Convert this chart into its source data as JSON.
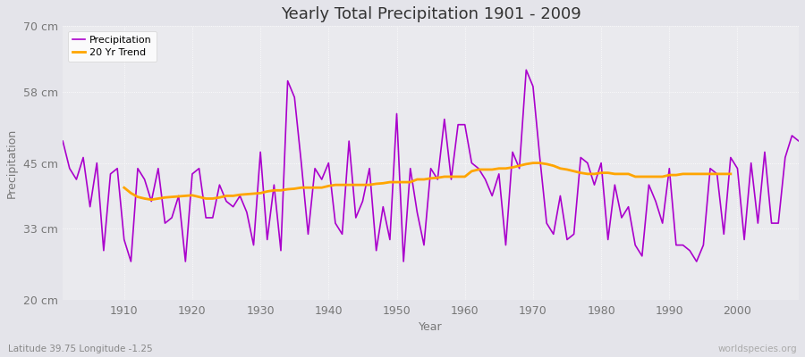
{
  "title": "Yearly Total Precipitation 1901 - 2009",
  "xlabel": "Year",
  "ylabel": "Precipitation",
  "subtitle": "Latitude 39.75 Longitude -1.25",
  "watermark": "worldspecies.org",
  "ylim": [
    20,
    70
  ],
  "yticks": [
    20,
    33,
    45,
    58,
    70
  ],
  "ytick_labels": [
    "20 cm",
    "33 cm",
    "45 cm",
    "58 cm",
    "70 cm"
  ],
  "precip_color": "#AA00CC",
  "trend_color": "#FFA500",
  "bg_color": "#E4E4EA",
  "plot_bg_color": "#EAEAEE",
  "grid_color": "#FFFFFF",
  "subtitle_color": "#888888",
  "watermark_color": "#AAAAAA",
  "title_color": "#333333",
  "years": [
    1901,
    1902,
    1903,
    1904,
    1905,
    1906,
    1907,
    1908,
    1909,
    1910,
    1911,
    1912,
    1913,
    1914,
    1915,
    1916,
    1917,
    1918,
    1919,
    1920,
    1921,
    1922,
    1923,
    1924,
    1925,
    1926,
    1927,
    1928,
    1929,
    1930,
    1931,
    1932,
    1933,
    1934,
    1935,
    1936,
    1937,
    1938,
    1939,
    1940,
    1941,
    1942,
    1943,
    1944,
    1945,
    1946,
    1947,
    1948,
    1949,
    1950,
    1951,
    1952,
    1953,
    1954,
    1955,
    1956,
    1957,
    1958,
    1959,
    1960,
    1961,
    1962,
    1963,
    1964,
    1965,
    1966,
    1967,
    1968,
    1969,
    1970,
    1971,
    1972,
    1973,
    1974,
    1975,
    1976,
    1977,
    1978,
    1979,
    1980,
    1981,
    1982,
    1983,
    1984,
    1985,
    1986,
    1987,
    1988,
    1989,
    1990,
    1991,
    1992,
    1993,
    1994,
    1995,
    1996,
    1997,
    1998,
    1999,
    2000,
    2001,
    2002,
    2003,
    2004,
    2005,
    2006,
    2007,
    2008,
    2009
  ],
  "precipitation": [
    49,
    44,
    42,
    46,
    37,
    45,
    29,
    43,
    44,
    31,
    27,
    44,
    42,
    38,
    44,
    34,
    35,
    39,
    27,
    43,
    44,
    35,
    35,
    41,
    38,
    37,
    39,
    36,
    30,
    47,
    31,
    41,
    29,
    60,
    57,
    45,
    32,
    44,
    42,
    45,
    34,
    32,
    49,
    35,
    38,
    44,
    29,
    37,
    31,
    54,
    27,
    44,
    36,
    30,
    44,
    42,
    53,
    42,
    52,
    52,
    45,
    44,
    42,
    39,
    43,
    30,
    47,
    44,
    62,
    59,
    46,
    34,
    32,
    39,
    31,
    32,
    46,
    45,
    41,
    45,
    31,
    41,
    35,
    37,
    30,
    28,
    41,
    38,
    34,
    44,
    30,
    30,
    29,
    27,
    30,
    44,
    43,
    32,
    46,
    44,
    31,
    45,
    34,
    47,
    34,
    34,
    46,
    50,
    49
  ],
  "trend_years": [
    1910,
    1911,
    1912,
    1913,
    1914,
    1915,
    1916,
    1917,
    1918,
    1919,
    1920,
    1921,
    1922,
    1923,
    1924,
    1925,
    1926,
    1927,
    1928,
    1929,
    1930,
    1931,
    1932,
    1933,
    1934,
    1935,
    1936,
    1937,
    1938,
    1939,
    1940,
    1941,
    1942,
    1943,
    1944,
    1945,
    1946,
    1947,
    1948,
    1949,
    1950,
    1951,
    1952,
    1953,
    1954,
    1955,
    1956,
    1957,
    1958,
    1959,
    1960,
    1961,
    1962,
    1963,
    1964,
    1965,
    1966,
    1967,
    1968,
    1969,
    1970,
    1971,
    1972,
    1973,
    1974,
    1975,
    1976,
    1977,
    1978,
    1979,
    1980,
    1981,
    1982,
    1983,
    1984,
    1985,
    1986,
    1987,
    1988,
    1989,
    1990,
    1991,
    1992,
    1993,
    1994,
    1995,
    1996,
    1997,
    1998,
    1999
  ],
  "trend": [
    40.5,
    39.5,
    38.8,
    38.5,
    38.3,
    38.5,
    38.7,
    38.8,
    38.9,
    39.0,
    39.1,
    38.8,
    38.5,
    38.5,
    38.7,
    39.0,
    39.0,
    39.2,
    39.3,
    39.4,
    39.5,
    39.8,
    40.0,
    40.0,
    40.2,
    40.3,
    40.5,
    40.5,
    40.5,
    40.5,
    40.8,
    41.0,
    41.0,
    41.0,
    41.0,
    41.0,
    41.0,
    41.2,
    41.3,
    41.5,
    41.5,
    41.5,
    41.5,
    42.0,
    42.0,
    42.2,
    42.3,
    42.5,
    42.5,
    42.5,
    42.5,
    43.5,
    43.8,
    43.8,
    43.8,
    44.0,
    44.0,
    44.2,
    44.5,
    44.8,
    45.0,
    45.0,
    44.8,
    44.5,
    44.0,
    43.8,
    43.5,
    43.2,
    43.0,
    43.0,
    43.2,
    43.2,
    43.0,
    43.0,
    43.0,
    42.5,
    42.5,
    42.5,
    42.5,
    42.5,
    42.8,
    42.8,
    43.0,
    43.0,
    43.0,
    43.0,
    43.0,
    43.0,
    43.0,
    43.0
  ],
  "xticks": [
    1910,
    1920,
    1930,
    1940,
    1950,
    1960,
    1970,
    1980,
    1990,
    2000
  ],
  "xlim": [
    1901,
    2009
  ]
}
